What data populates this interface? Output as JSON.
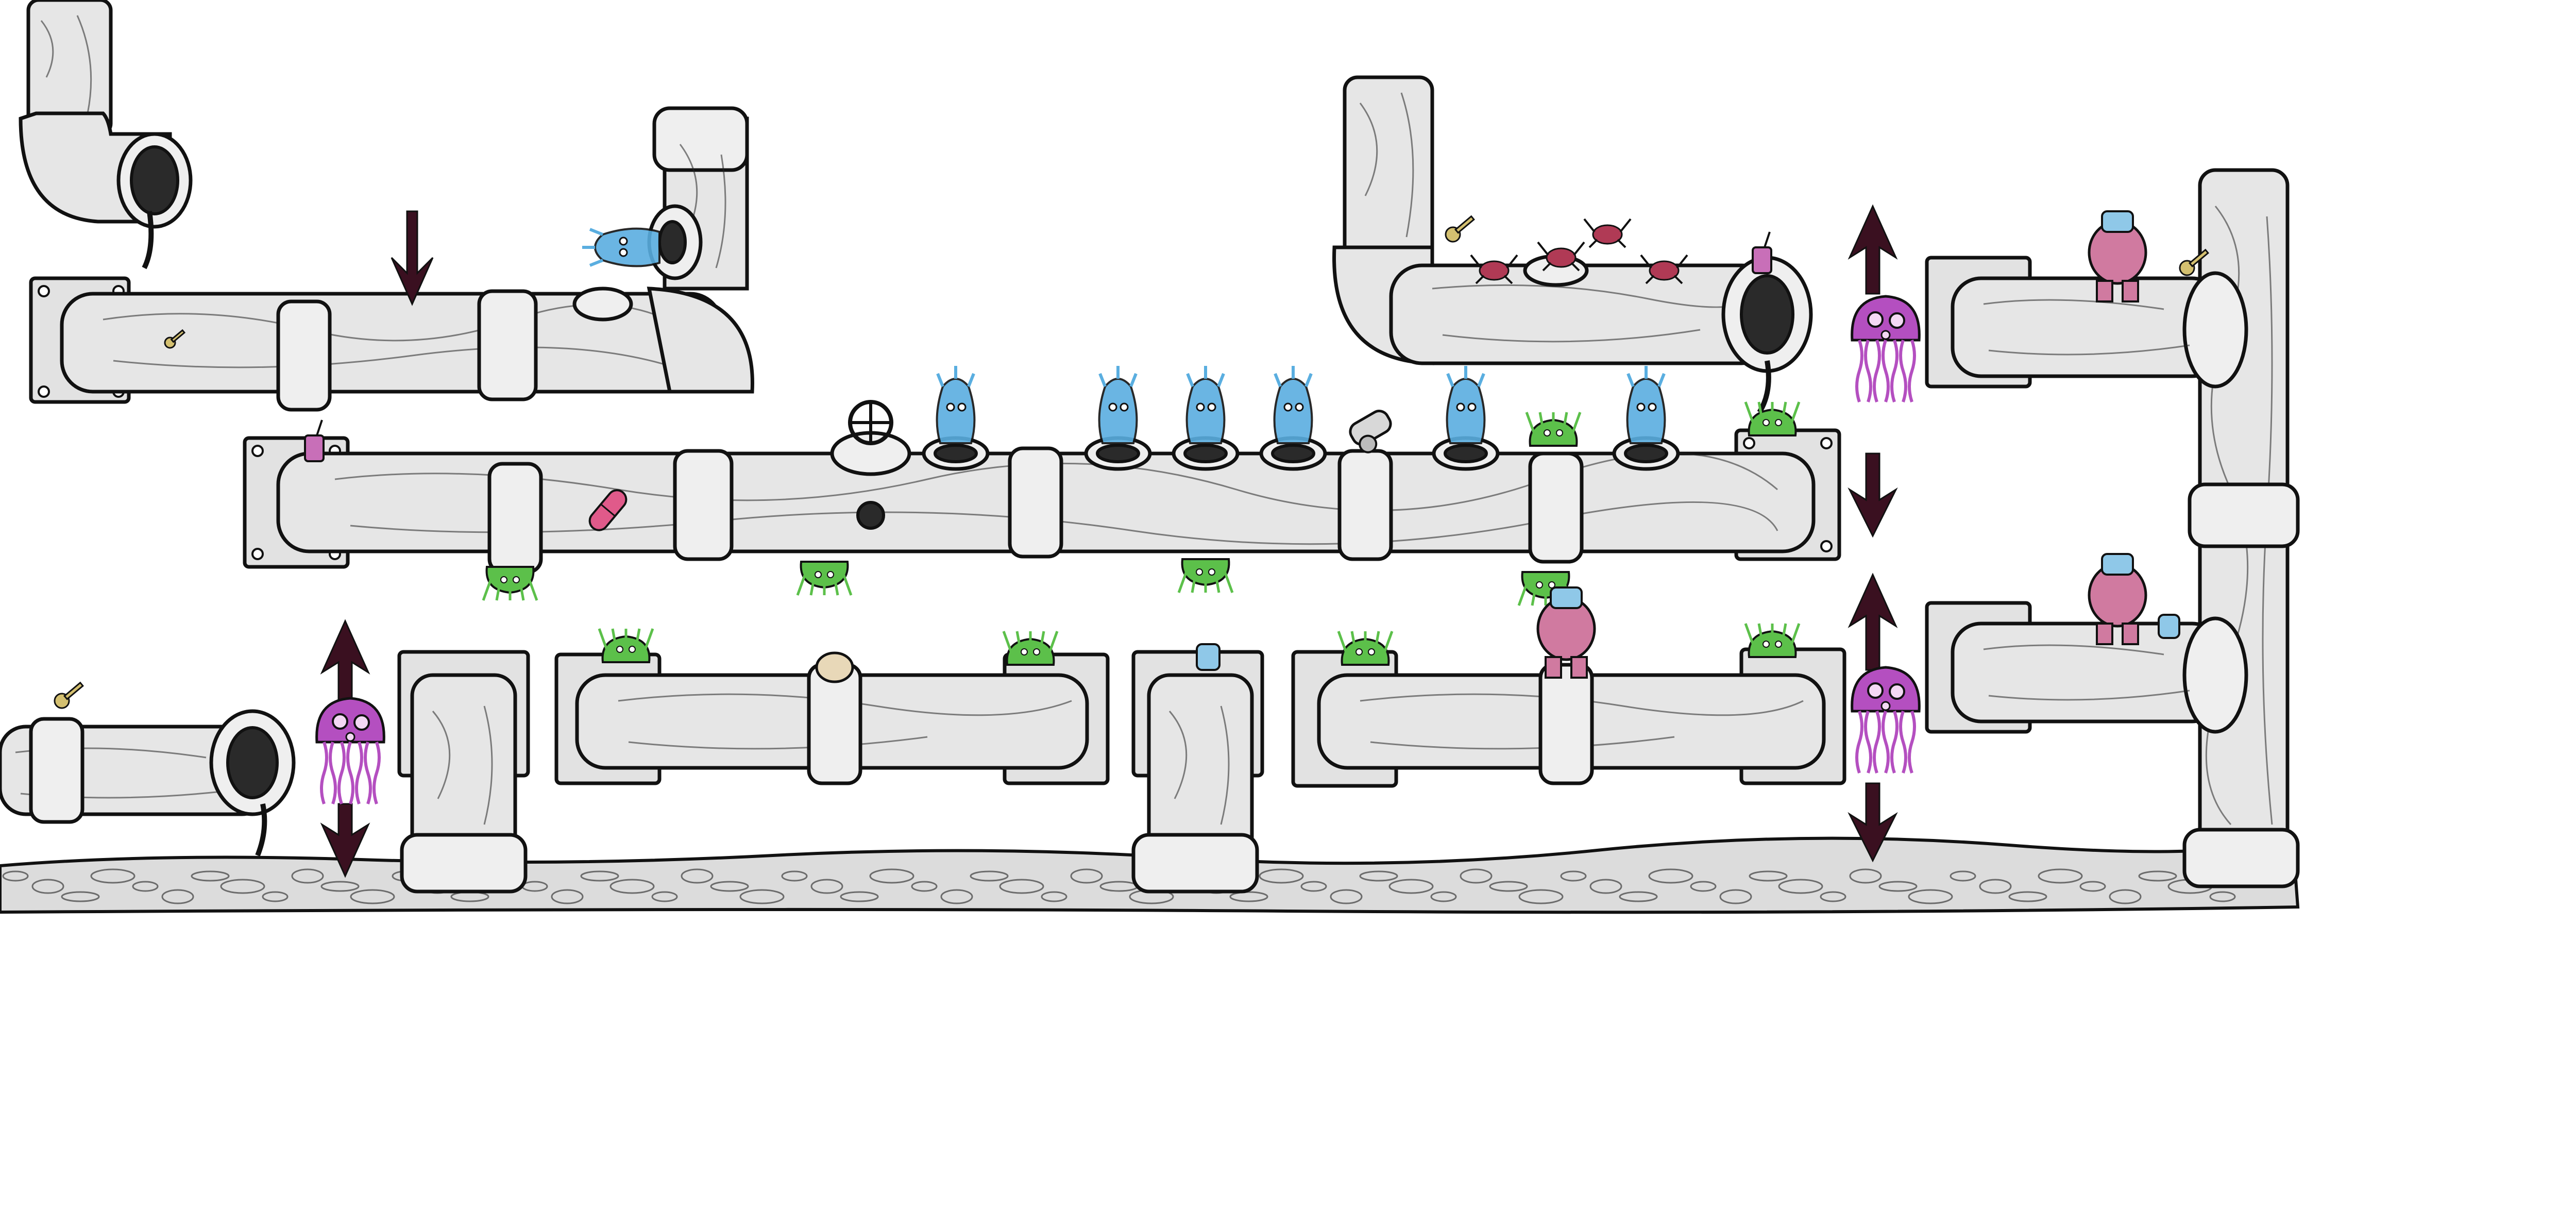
{
  "scene": {
    "kind": "hand-drawn pipe level map",
    "palette": {
      "background": "#ffffff",
      "ink": "#111111",
      "pipe": "#e6e6e6",
      "water_enemy": "#5aaee0",
      "jellyfish": "#b44fc0",
      "slime": "#5cc04a",
      "brute": "#d07aa0",
      "crab": "#b03a55",
      "drink": "#c86fb8",
      "key": "#d4c070",
      "capsule": "#e05a8a",
      "arrow": "#3a1020"
    },
    "icons": [
      "water-jet-enemy-icon",
      "jellyfish-enemy-icon",
      "slime-enemy-icon",
      "brute-enemy-icon",
      "crab-enemy-icon",
      "drink-cup-icon",
      "jar-icon",
      "key-icon",
      "capsule-icon",
      "valve-wheel-icon",
      "cannon-icon",
      "elevator-arrow-icon"
    ]
  }
}
